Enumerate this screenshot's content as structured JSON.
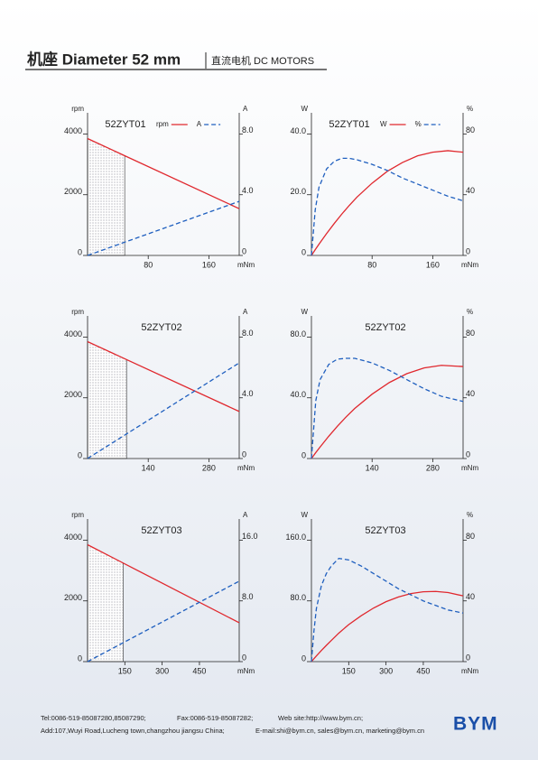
{
  "header": {
    "title": "机座 Diameter 52 mm",
    "subtitle": "直流电机 DC MOTORS"
  },
  "chart_data": [
    {
      "type": "line",
      "title": "52ZYT01",
      "xlabel": "mNm",
      "ylabel": "rpm",
      "y2label": "A",
      "legend": true,
      "xlim": [
        0,
        200
      ],
      "xticks": [
        80,
        160
      ],
      "ylim": [
        0,
        4400
      ],
      "yticks": [
        0,
        2000,
        4000
      ],
      "y2lim": [
        0,
        8.8
      ],
      "y2ticks": [
        0,
        {
          "value": 4,
          "label": "4.0"
        },
        {
          "value": 8,
          "label": "8.0"
        }
      ],
      "shade_to": 49,
      "x": [
        0,
        200
      ],
      "series": [
        {
          "name": "rpm",
          "color": "#e0282e",
          "dashed": false,
          "values": [
            3850,
            1540
          ]
        },
        {
          "name": "A",
          "color": "#1f5fbf",
          "dashed": true,
          "axis": "y2",
          "values": [
            0,
            3.56
          ]
        }
      ]
    },
    {
      "type": "line",
      "title": "52ZYT01",
      "xlabel": "mNm",
      "ylabel": "W",
      "y2label": "%",
      "legend": true,
      "xlim": [
        0,
        200
      ],
      "xticks": [
        80,
        160
      ],
      "ylim": [
        0,
        44
      ],
      "yticks": [
        0,
        {
          "value": 20,
          "label": "20.0"
        },
        {
          "value": 40,
          "label": "40.0"
        }
      ],
      "y2lim": [
        0,
        88
      ],
      "y2ticks": [
        0,
        40,
        80
      ],
      "x": [
        0,
        5,
        10,
        20,
        30,
        40,
        50,
        60,
        80,
        100,
        120,
        140,
        160,
        180,
        200
      ],
      "series": [
        {
          "name": "W",
          "color": "#e0282e",
          "dashed": false,
          "values": [
            0,
            1.9,
            3.7,
            7.2,
            10.5,
            13.6,
            16.5,
            19.2,
            23.8,
            27.7,
            30.6,
            32.8,
            34.0,
            34.5,
            34.0
          ]
        },
        {
          "name": "%",
          "color": "#1f5fbf",
          "dashed": true,
          "axis": "y2",
          "values": [
            0,
            30,
            45,
            57,
            62,
            64,
            64,
            63,
            60,
            56,
            51,
            47,
            43,
            39,
            36
          ]
        }
      ]
    },
    {
      "type": "line",
      "title": "52ZYT02",
      "xlabel": "mNm",
      "ylabel": "rpm",
      "y2label": "A",
      "legend": false,
      "xlim": [
        0,
        350
      ],
      "xticks": [
        140,
        280
      ],
      "ylim": [
        0,
        4400
      ],
      "yticks": [
        0,
        2000,
        4000
      ],
      "y2lim": [
        0,
        8.8
      ],
      "y2ticks": [
        0,
        {
          "value": 4,
          "label": "4.0"
        },
        {
          "value": 8,
          "label": "8.0"
        }
      ],
      "shade_to": 90,
      "x": [
        0,
        350
      ],
      "series": [
        {
          "name": "rpm",
          "color": "#e0282e",
          "dashed": false,
          "values": [
            3850,
            1550
          ]
        },
        {
          "name": "A",
          "color": "#1f5fbf",
          "dashed": true,
          "axis": "y2",
          "values": [
            0,
            6.3
          ]
        }
      ]
    },
    {
      "type": "line",
      "title": "52ZYT02",
      "xlabel": "mNm",
      "ylabel": "W",
      "y2label": "%",
      "legend": false,
      "xlim": [
        0,
        350
      ],
      "xticks": [
        140,
        280
      ],
      "ylim": [
        0,
        88
      ],
      "yticks": [
        0,
        {
          "value": 40,
          "label": "40.0"
        },
        {
          "value": 80,
          "label": "80.0"
        }
      ],
      "y2lim": [
        0,
        88
      ],
      "y2ticks": [
        0,
        40,
        80
      ],
      "x": [
        0,
        10,
        20,
        40,
        60,
        80,
        100,
        140,
        180,
        220,
        260,
        300,
        350
      ],
      "series": [
        {
          "name": "W",
          "color": "#e0282e",
          "dashed": false,
          "values": [
            0,
            3.9,
            7.6,
            14.7,
            21.3,
            27.4,
            33.0,
            42.4,
            50.1,
            55.9,
            59.7,
            61.4,
            60.6
          ]
        },
        {
          "name": "%",
          "color": "#1f5fbf",
          "dashed": true,
          "axis": "y2",
          "values": [
            0,
            38,
            52,
            62,
            65.5,
            66,
            66,
            63,
            58,
            52,
            46,
            41,
            37.6
          ]
        }
      ]
    },
    {
      "type": "line",
      "title": "52ZYT03",
      "xlabel": "mNm",
      "ylabel": "rpm",
      "y2label": "A",
      "legend": false,
      "xlim": [
        0,
        610
      ],
      "xticks": [
        150,
        300,
        450
      ],
      "ylim": [
        0,
        4400
      ],
      "yticks": [
        0,
        2000,
        4000
      ],
      "y2lim": [
        0,
        17.6
      ],
      "y2ticks": [
        0,
        {
          "value": 8,
          "label": "8.0"
        },
        {
          "value": 16,
          "label": "16.0"
        }
      ],
      "shade_to": 143,
      "x": [
        0,
        610
      ],
      "series": [
        {
          "name": "rpm",
          "color": "#e0282e",
          "dashed": false,
          "values": [
            3850,
            1280
          ]
        },
        {
          "name": "A",
          "color": "#1f5fbf",
          "dashed": true,
          "axis": "y2",
          "values": [
            0,
            10.6
          ]
        }
      ]
    },
    {
      "type": "line",
      "title": "52ZYT03",
      "xlabel": "mNm",
      "ylabel": "W",
      "y2label": "%",
      "legend": false,
      "xlim": [
        0,
        610
      ],
      "xticks": [
        150,
        300,
        450
      ],
      "ylim": [
        0,
        176
      ],
      "yticks": [
        0,
        {
          "value": 80,
          "label": "80.0"
        },
        {
          "value": 160,
          "label": "160.0"
        }
      ],
      "y2lim": [
        0,
        88
      ],
      "y2ticks": [
        0,
        40,
        80
      ],
      "x": [
        0,
        10,
        20,
        40,
        60,
        80,
        110,
        150,
        200,
        250,
        300,
        350,
        400,
        450,
        500,
        550,
        610
      ],
      "series": [
        {
          "name": "W",
          "color": "#e0282e",
          "dashed": false,
          "values": [
            0,
            3.8,
            7.5,
            14.6,
            21.4,
            27.9,
            37.5,
            48.8,
            60.4,
            70.6,
            78.9,
            85.2,
            89.6,
            92.0,
            92.5,
            91.0,
            86.6
          ]
        },
        {
          "name": "%",
          "color": "#1f5fbf",
          "dashed": true,
          "axis": "y2",
          "values": [
            0,
            20,
            35,
            50,
            58,
            63,
            68,
            67,
            63,
            58,
            53,
            48,
            44,
            40,
            37,
            34,
            32
          ]
        }
      ]
    }
  ],
  "footer": {
    "tel": "Tel:0086-519-85087280,85087290;",
    "fax": "Fax:0086-519-85087282;",
    "web": "Web site:http://www.bym.cn;",
    "address": "Add:107,Wuyi Road,Lucheng town,changzhou jiangsu China;",
    "email": "E-mail:shi@bym.cn, sales@bym.cn, marketing@bym.cn",
    "logo": "BYM"
  }
}
